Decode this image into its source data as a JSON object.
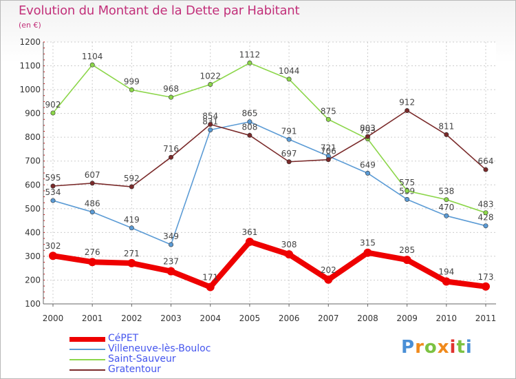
{
  "title": "Evolution du Montant de la Dette par Habitant",
  "subtitle": "(en €)",
  "logo": {
    "letters": [
      "P",
      "r",
      "o",
      "x",
      "i",
      "t",
      "i"
    ],
    "colors": [
      "#4a8fd6",
      "#f08a1c",
      "#7cc242",
      "#f08a1c",
      "#e0342f",
      "#7cc242",
      "#4a8fd6"
    ]
  },
  "chart_data": {
    "type": "line",
    "x": [
      "2000",
      "2001",
      "2002",
      "2003",
      "2004",
      "2005",
      "2006",
      "2007",
      "2008",
      "2009",
      "2010",
      "2011"
    ],
    "ylim": [
      100,
      1200
    ],
    "yticks": [
      "100",
      "200",
      "300",
      "400",
      "500",
      "600",
      "700",
      "800",
      "900",
      "1000",
      "1100",
      "1200"
    ],
    "grid": true,
    "legend_position": "bottom-left",
    "series": [
      {
        "name": "CéPET",
        "color": "#ee0000",
        "label_color": "#ee0000",
        "values": [
          302,
          276,
          271,
          237,
          171,
          361,
          308,
          202,
          315,
          285,
          194,
          173
        ],
        "labels": [
          "302",
          "276",
          "271",
          "237",
          "171",
          "361",
          "308",
          "202",
          "315",
          "285",
          "194",
          "173"
        ]
      },
      {
        "name": "Villeneuve-lès-Bouloc",
        "color": "#5b9bd5",
        "label_color": "#4f7fcf",
        "values": [
          534,
          486,
          419,
          349,
          831,
          865,
          791,
          721,
          649,
          539,
          470,
          428
        ],
        "labels": [
          "534",
          "486",
          "419",
          "349",
          "831",
          "865",
          "791",
          "721",
          "649",
          "539",
          "470",
          "428"
        ]
      },
      {
        "name": "Saint-Sauveur",
        "color": "#8cd64a",
        "label_color": "#66bb44",
        "values": [
          902,
          1104,
          999,
          968,
          1022,
          1112,
          1044,
          875,
          793,
          575,
          538,
          483
        ],
        "labels": [
          "902",
          "1104",
          "999",
          "968",
          "1022",
          "1112",
          "1044",
          "875",
          "793",
          "575",
          "538",
          "483"
        ]
      },
      {
        "name": "Gratentour",
        "color": "#7a2a2a",
        "label_color": "#8b3a3a",
        "values": [
          595,
          607,
          592,
          716,
          854,
          808,
          697,
          706,
          803,
          912,
          811,
          664
        ],
        "labels": [
          "595",
          "607",
          "592",
          "716",
          "854",
          "808",
          "697",
          "706",
          "803",
          "912",
          "811",
          "664"
        ]
      }
    ]
  }
}
